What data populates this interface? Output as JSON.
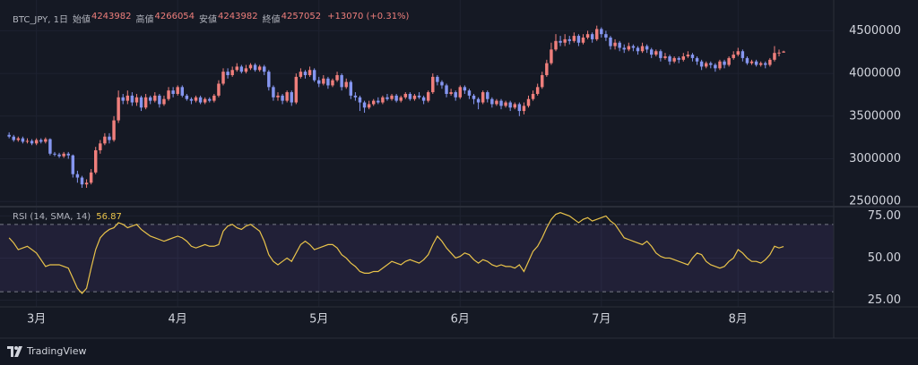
{
  "chart_data": {
    "type": "candlestick",
    "title": "BTC_JPY, 1日",
    "labels": {
      "open": "始値",
      "high": "高値",
      "low": "安値",
      "close": "終値"
    },
    "change": "+13070 (+0.31%)",
    "up_color": "#ef7f7c",
    "down_color": "#8596f0",
    "grid": true,
    "xlim": [
      -2,
      181
    ],
    "xticks": [
      {
        "value": 6,
        "label": "3月"
      },
      {
        "value": 37,
        "label": "4月"
      },
      {
        "value": 68,
        "label": "5月"
      },
      {
        "value": 99,
        "label": "6月"
      },
      {
        "value": 130,
        "label": "7月"
      },
      {
        "value": 160,
        "label": "8月"
      }
    ],
    "ylim": [
      2450000,
      4860000
    ],
    "yticks": [
      2500000,
      3000000,
      3500000,
      4000000,
      4500000
    ],
    "candles": [
      [
        3280000,
        3310000,
        3240000,
        3260000
      ],
      [
        3260000,
        3280000,
        3200000,
        3220000
      ],
      [
        3220000,
        3260000,
        3200000,
        3240000
      ],
      [
        3240000,
        3260000,
        3180000,
        3200000
      ],
      [
        3200000,
        3240000,
        3180000,
        3210000
      ],
      [
        3210000,
        3230000,
        3160000,
        3180000
      ],
      [
        3180000,
        3240000,
        3160000,
        3220000
      ],
      [
        3220000,
        3240000,
        3180000,
        3200000
      ],
      [
        3200000,
        3250000,
        3180000,
        3230000
      ],
      [
        3230000,
        3240000,
        3040000,
        3060000
      ],
      [
        3060000,
        3080000,
        3030000,
        3050000
      ],
      [
        3050000,
        3070000,
        3010000,
        3030000
      ],
      [
        3030000,
        3080000,
        3010000,
        3060000
      ],
      [
        3060000,
        3080000,
        3000000,
        3040000
      ],
      [
        3040000,
        3050000,
        2780000,
        2820000
      ],
      [
        2820000,
        2860000,
        2720000,
        2780000
      ],
      [
        2780000,
        2800000,
        2660000,
        2700000
      ],
      [
        2700000,
        2760000,
        2660000,
        2720000
      ],
      [
        2720000,
        2880000,
        2700000,
        2840000
      ],
      [
        2840000,
        3140000,
        2820000,
        3100000
      ],
      [
        3100000,
        3220000,
        3060000,
        3180000
      ],
      [
        3180000,
        3300000,
        3160000,
        3260000
      ],
      [
        3260000,
        3300000,
        3180000,
        3220000
      ],
      [
        3220000,
        3500000,
        3200000,
        3450000
      ],
      [
        3450000,
        3800000,
        3420000,
        3720000
      ],
      [
        3720000,
        3760000,
        3640000,
        3680000
      ],
      [
        3680000,
        3800000,
        3640000,
        3740000
      ],
      [
        3740000,
        3780000,
        3620000,
        3660000
      ],
      [
        3660000,
        3760000,
        3620000,
        3720000
      ],
      [
        3720000,
        3740000,
        3560000,
        3600000
      ],
      [
        3600000,
        3760000,
        3580000,
        3720000
      ],
      [
        3720000,
        3740000,
        3640000,
        3680000
      ],
      [
        3680000,
        3780000,
        3660000,
        3740000
      ],
      [
        3740000,
        3760000,
        3600000,
        3640000
      ],
      [
        3640000,
        3740000,
        3620000,
        3700000
      ],
      [
        3700000,
        3840000,
        3680000,
        3800000
      ],
      [
        3800000,
        3840000,
        3720000,
        3760000
      ],
      [
        3760000,
        3860000,
        3740000,
        3840000
      ],
      [
        3840000,
        3860000,
        3720000,
        3740000
      ],
      [
        3740000,
        3760000,
        3680000,
        3700000
      ],
      [
        3700000,
        3720000,
        3640000,
        3680000
      ],
      [
        3680000,
        3740000,
        3660000,
        3720000
      ],
      [
        3720000,
        3740000,
        3640000,
        3660000
      ],
      [
        3660000,
        3720000,
        3640000,
        3700000
      ],
      [
        3700000,
        3720000,
        3660000,
        3680000
      ],
      [
        3680000,
        3760000,
        3660000,
        3740000
      ],
      [
        3740000,
        3920000,
        3720000,
        3880000
      ],
      [
        3880000,
        4060000,
        3860000,
        4020000
      ],
      [
        4020000,
        4060000,
        3940000,
        3980000
      ],
      [
        3980000,
        4080000,
        3960000,
        4040000
      ],
      [
        4040000,
        4120000,
        4020000,
        4080000
      ],
      [
        4080000,
        4100000,
        4000000,
        4020000
      ],
      [
        4020000,
        4100000,
        4000000,
        4060000
      ],
      [
        4060000,
        4120000,
        4040000,
        4100000
      ],
      [
        4100000,
        4120000,
        4020000,
        4040000
      ],
      [
        4040000,
        4100000,
        4020000,
        4080000
      ],
      [
        4080000,
        4100000,
        3980000,
        4020000
      ],
      [
        4020000,
        4040000,
        3800000,
        3840000
      ],
      [
        3840000,
        3860000,
        3680000,
        3720000
      ],
      [
        3720000,
        3780000,
        3680000,
        3740000
      ],
      [
        3740000,
        3760000,
        3640000,
        3680000
      ],
      [
        3680000,
        3800000,
        3660000,
        3780000
      ],
      [
        3780000,
        3800000,
        3620000,
        3660000
      ],
      [
        3660000,
        4000000,
        3640000,
        3960000
      ],
      [
        3960000,
        4060000,
        3940000,
        4020000
      ],
      [
        4020000,
        4040000,
        3940000,
        3980000
      ],
      [
        3980000,
        4080000,
        3960000,
        4040000
      ],
      [
        4040000,
        4060000,
        3900000,
        3920000
      ],
      [
        3920000,
        3960000,
        3840000,
        3880000
      ],
      [
        3880000,
        3980000,
        3860000,
        3940000
      ],
      [
        3940000,
        3960000,
        3820000,
        3860000
      ],
      [
        3860000,
        3940000,
        3840000,
        3920000
      ],
      [
        3920000,
        4020000,
        3900000,
        3980000
      ],
      [
        3980000,
        4000000,
        3800000,
        3840000
      ],
      [
        3840000,
        3940000,
        3820000,
        3900000
      ],
      [
        3900000,
        3920000,
        3700000,
        3740000
      ],
      [
        3740000,
        3780000,
        3680000,
        3720000
      ],
      [
        3720000,
        3740000,
        3560000,
        3660000
      ],
      [
        3660000,
        3680000,
        3540000,
        3600000
      ],
      [
        3600000,
        3680000,
        3580000,
        3640000
      ],
      [
        3640000,
        3700000,
        3620000,
        3680000
      ],
      [
        3680000,
        3720000,
        3640000,
        3660000
      ],
      [
        3660000,
        3740000,
        3640000,
        3720000
      ],
      [
        3720000,
        3760000,
        3680000,
        3700000
      ],
      [
        3700000,
        3760000,
        3680000,
        3740000
      ],
      [
        3740000,
        3760000,
        3660000,
        3680000
      ],
      [
        3680000,
        3740000,
        3660000,
        3720000
      ],
      [
        3720000,
        3780000,
        3700000,
        3760000
      ],
      [
        3760000,
        3780000,
        3680000,
        3700000
      ],
      [
        3700000,
        3760000,
        3680000,
        3740000
      ],
      [
        3740000,
        3780000,
        3700000,
        3720000
      ],
      [
        3720000,
        3740000,
        3640000,
        3680000
      ],
      [
        3680000,
        3800000,
        3660000,
        3780000
      ],
      [
        3780000,
        4000000,
        3760000,
        3960000
      ],
      [
        3960000,
        3980000,
        3860000,
        3900000
      ],
      [
        3900000,
        3920000,
        3820000,
        3860000
      ],
      [
        3860000,
        3880000,
        3720000,
        3760000
      ],
      [
        3760000,
        3820000,
        3740000,
        3780000
      ],
      [
        3780000,
        3800000,
        3680000,
        3720000
      ],
      [
        3720000,
        3860000,
        3700000,
        3840000
      ],
      [
        3840000,
        3860000,
        3760000,
        3800000
      ],
      [
        3800000,
        3820000,
        3700000,
        3740000
      ],
      [
        3740000,
        3760000,
        3640000,
        3700000
      ],
      [
        3700000,
        3720000,
        3580000,
        3660000
      ],
      [
        3660000,
        3800000,
        3640000,
        3780000
      ],
      [
        3780000,
        3800000,
        3660000,
        3700000
      ],
      [
        3700000,
        3720000,
        3600000,
        3640000
      ],
      [
        3640000,
        3700000,
        3620000,
        3680000
      ],
      [
        3680000,
        3700000,
        3580000,
        3620000
      ],
      [
        3620000,
        3680000,
        3600000,
        3660000
      ],
      [
        3660000,
        3680000,
        3560000,
        3600000
      ],
      [
        3600000,
        3660000,
        3580000,
        3640000
      ],
      [
        3640000,
        3660000,
        3500000,
        3560000
      ],
      [
        3560000,
        3660000,
        3520000,
        3620000
      ],
      [
        3620000,
        3740000,
        3600000,
        3700000
      ],
      [
        3700000,
        3800000,
        3680000,
        3760000
      ],
      [
        3760000,
        3880000,
        3740000,
        3840000
      ],
      [
        3840000,
        4020000,
        3820000,
        3980000
      ],
      [
        3980000,
        4160000,
        3960000,
        4120000
      ],
      [
        4120000,
        4360000,
        4100000,
        4280000
      ],
      [
        4280000,
        4460000,
        4260000,
        4380000
      ],
      [
        4380000,
        4440000,
        4320000,
        4360000
      ],
      [
        4360000,
        4460000,
        4320000,
        4400000
      ],
      [
        4400000,
        4440000,
        4340000,
        4380000
      ],
      [
        4380000,
        4480000,
        4360000,
        4440000
      ],
      [
        4440000,
        4460000,
        4320000,
        4360000
      ],
      [
        4360000,
        4460000,
        4340000,
        4420000
      ],
      [
        4420000,
        4500000,
        4400000,
        4460000
      ],
      [
        4460000,
        4480000,
        4360000,
        4400000
      ],
      [
        4400000,
        4560000,
        4380000,
        4520000
      ],
      [
        4520000,
        4540000,
        4420000,
        4460000
      ],
      [
        4460000,
        4500000,
        4380000,
        4420000
      ],
      [
        4420000,
        4440000,
        4280000,
        4320000
      ],
      [
        4320000,
        4400000,
        4280000,
        4360000
      ],
      [
        4360000,
        4380000,
        4260000,
        4300000
      ],
      [
        4300000,
        4340000,
        4240000,
        4280000
      ],
      [
        4280000,
        4360000,
        4260000,
        4320000
      ],
      [
        4320000,
        4340000,
        4260000,
        4300000
      ],
      [
        4300000,
        4320000,
        4220000,
        4260000
      ],
      [
        4260000,
        4360000,
        4240000,
        4320000
      ],
      [
        4320000,
        4340000,
        4240000,
        4280000
      ],
      [
        4280000,
        4300000,
        4180000,
        4220000
      ],
      [
        4220000,
        4280000,
        4200000,
        4260000
      ],
      [
        4260000,
        4280000,
        4140000,
        4180000
      ],
      [
        4180000,
        4240000,
        4160000,
        4200000
      ],
      [
        4200000,
        4220000,
        4100000,
        4140000
      ],
      [
        4140000,
        4200000,
        4120000,
        4180000
      ],
      [
        4180000,
        4200000,
        4120000,
        4160000
      ],
      [
        4160000,
        4240000,
        4140000,
        4200000
      ],
      [
        4200000,
        4260000,
        4180000,
        4220000
      ],
      [
        4220000,
        4240000,
        4140000,
        4180000
      ],
      [
        4180000,
        4200000,
        4100000,
        4140000
      ],
      [
        4140000,
        4160000,
        4040000,
        4080000
      ],
      [
        4080000,
        4140000,
        4060000,
        4120000
      ],
      [
        4120000,
        4140000,
        4060000,
        4100000
      ],
      [
        4100000,
        4120000,
        4020000,
        4060000
      ],
      [
        4060000,
        4160000,
        4040000,
        4140000
      ],
      [
        4140000,
        4160000,
        4060000,
        4100000
      ],
      [
        4100000,
        4200000,
        4080000,
        4180000
      ],
      [
        4180000,
        4260000,
        4160000,
        4220000
      ],
      [
        4220000,
        4300000,
        4200000,
        4260000
      ],
      [
        4260000,
        4280000,
        4140000,
        4180000
      ],
      [
        4180000,
        4200000,
        4100000,
        4120000
      ],
      [
        4120000,
        4160000,
        4100000,
        4140000
      ],
      [
        4140000,
        4160000,
        4080000,
        4100000
      ],
      [
        4100000,
        4140000,
        4080000,
        4120000
      ],
      [
        4120000,
        4140000,
        4060000,
        4100000
      ],
      [
        4100000,
        4180000,
        4080000,
        4160000
      ],
      [
        4160000,
        4320000,
        4140000,
        4240000
      ],
      [
        4240000,
        4280000,
        4200000,
        4243982
      ],
      [
        4243982,
        4266054,
        4243982,
        4257052
      ]
    ],
    "rsi": {
      "type": "line",
      "name": "RSI (14, SMA, 14)",
      "color": "#e9c34a",
      "ylim": [
        21,
        80
      ],
      "yticks": [
        {
          "value": 25,
          "label": "25.00"
        },
        {
          "value": 50,
          "label": "50.00"
        },
        {
          "value": 75,
          "label": "75.00"
        }
      ],
      "bands": [
        30,
        70
      ],
      "values": [
        62,
        59,
        55,
        56,
        57,
        55,
        53,
        49,
        45,
        46,
        46,
        46,
        45,
        44,
        38,
        32,
        29,
        32,
        44,
        55,
        62,
        65,
        67,
        68,
        71,
        70,
        68,
        69,
        70,
        67,
        65,
        63,
        62,
        61,
        60,
        61,
        62,
        63,
        62,
        60,
        57,
        56,
        57,
        58,
        57,
        57,
        58,
        66,
        69,
        70,
        68,
        67,
        69,
        70,
        68,
        66,
        60,
        52,
        48,
        46,
        48,
        50,
        48,
        53,
        58,
        60,
        58,
        55,
        56,
        57,
        58,
        58,
        56,
        52,
        50,
        47,
        45,
        42,
        41,
        41,
        42,
        42,
        44,
        46,
        48,
        47,
        46,
        48,
        49,
        48,
        47,
        49,
        52,
        58,
        63,
        60,
        56,
        53,
        50,
        51,
        53,
        52,
        49,
        47,
        49,
        48,
        46,
        45,
        46,
        45,
        45,
        44,
        46,
        42,
        48,
        54,
        57,
        62,
        68,
        73,
        76,
        77,
        76,
        75,
        73,
        71,
        73,
        74,
        72,
        73,
        74,
        75,
        72,
        70,
        66,
        62,
        61,
        60,
        59,
        58,
        60,
        57,
        53,
        51,
        50,
        50,
        49,
        48,
        47,
        46,
        50,
        53,
        52,
        48,
        46,
        45,
        44,
        45,
        48,
        50,
        55,
        53,
        50,
        48,
        48,
        47,
        49,
        52,
        57,
        56,
        56.87
      ]
    }
  },
  "footer": {
    "brand": "TradingView"
  }
}
